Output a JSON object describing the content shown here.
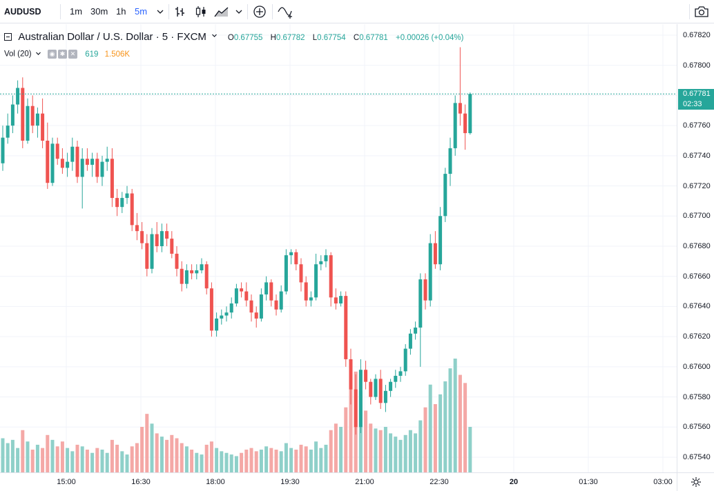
{
  "toolbar": {
    "symbol": "AUDUSD",
    "intervals": [
      "1m",
      "30m",
      "1h",
      "5m"
    ],
    "active_interval": "5m",
    "icons": [
      "bar-chart-icon",
      "candlestick-icon",
      "area-chart-icon",
      "chevron-down-icon",
      "compare-plus-icon",
      "indicators-icon",
      "camera-icon"
    ]
  },
  "legend": {
    "title": "Australian Dollar / U.S. Dollar · 5 · FXCM",
    "open_label": "O",
    "open": "0.67755",
    "high_label": "H",
    "high": "0.67782",
    "low_label": "L",
    "low": "0.67754",
    "close_label": "C",
    "close": "0.67781",
    "change": "+0.00026 (+0.04%)"
  },
  "volume_legend": {
    "label": "Vol (20)",
    "value_1": "619",
    "value_2": "1.506K",
    "value_1_color": "#26a69a",
    "value_2_color": "#f7931a"
  },
  "price_axis": {
    "labels": [
      "0.67820",
      "0.67800",
      "0.67780",
      "0.67760",
      "0.67740",
      "0.67720",
      "0.67700",
      "0.67680",
      "0.67660",
      "0.67640",
      "0.67620",
      "0.67600",
      "0.67580",
      "0.67560",
      "0.67540"
    ],
    "last_price": "0.67781",
    "countdown": "02:33"
  },
  "time_axis": {
    "labels": [
      "15:00",
      "16:30",
      "18:00",
      "19:30",
      "21:00",
      "22:30",
      "20",
      "01:30",
      "03:00"
    ]
  },
  "colors": {
    "up": "#26a69a",
    "down": "#ef5350",
    "up_volume": "#8fd0c9",
    "down_volume": "#f4a8a6",
    "grid": "#f0f3fa",
    "last_line": "#26a69a"
  },
  "chart_data": {
    "type": "candlestick",
    "title": "Australian Dollar / U.S. Dollar · 5 · FXCM",
    "ylim": [
      0.6753,
      0.6783
    ],
    "x_ticks": [
      "15:00",
      "16:30",
      "18:00",
      "19:30",
      "21:00",
      "22:30",
      "20",
      "01:30",
      "03:00"
    ],
    "candles": [
      [
        0.67735,
        0.6776,
        0.6773,
        0.67752,
        "up",
        210
      ],
      [
        0.67752,
        0.67768,
        0.67748,
        0.6776,
        "up",
        180
      ],
      [
        0.6776,
        0.6778,
        0.67755,
        0.67774,
        "up",
        200
      ],
      [
        0.67774,
        0.6779,
        0.67768,
        0.67785,
        "up",
        150
      ],
      [
        0.67785,
        0.67792,
        0.67745,
        0.6775,
        "down",
        260
      ],
      [
        0.6775,
        0.67778,
        0.67748,
        0.67773,
        "up",
        190
      ],
      [
        0.67773,
        0.6778,
        0.67755,
        0.6776,
        "down",
        140
      ],
      [
        0.6776,
        0.67772,
        0.67752,
        0.67768,
        "up",
        170
      ],
      [
        0.67768,
        0.67778,
        0.67745,
        0.6775,
        "down",
        150
      ],
      [
        0.6775,
        0.67762,
        0.67718,
        0.67722,
        "down",
        230
      ],
      [
        0.67722,
        0.67752,
        0.6772,
        0.67748,
        "up",
        200
      ],
      [
        0.67748,
        0.67752,
        0.67734,
        0.67738,
        "down",
        160
      ],
      [
        0.67738,
        0.67745,
        0.67728,
        0.67732,
        "down",
        190
      ],
      [
        0.67732,
        0.67742,
        0.67726,
        0.67736,
        "up",
        150
      ],
      [
        0.67736,
        0.67752,
        0.6773,
        0.67746,
        "up",
        130
      ],
      [
        0.67746,
        0.6775,
        0.67722,
        0.67726,
        "down",
        170
      ],
      [
        0.67726,
        0.67745,
        0.67705,
        0.67738,
        "up",
        160
      ],
      [
        0.67738,
        0.67745,
        0.6773,
        0.67734,
        "down",
        140
      ],
      [
        0.67734,
        0.67742,
        0.67726,
        0.67738,
        "up",
        120
      ],
      [
        0.67738,
        0.67742,
        0.67722,
        0.67726,
        "down",
        150
      ],
      [
        0.67726,
        0.6774,
        0.6772,
        0.67736,
        "up",
        140
      ],
      [
        0.67736,
        0.67746,
        0.6773,
        0.67738,
        "up",
        120
      ],
      [
        0.67738,
        0.67745,
        0.67706,
        0.67712,
        "down",
        200
      ],
      [
        0.67712,
        0.67718,
        0.677,
        0.67706,
        "down",
        170
      ],
      [
        0.67706,
        0.67716,
        0.67702,
        0.67712,
        "up",
        130
      ],
      [
        0.67712,
        0.6772,
        0.67708,
        0.67715,
        "up",
        110
      ],
      [
        0.67715,
        0.67718,
        0.6769,
        0.67694,
        "down",
        160
      ],
      [
        0.67694,
        0.67702,
        0.67684,
        0.6769,
        "down",
        180
      ],
      [
        0.6769,
        0.67696,
        0.67678,
        0.67682,
        "down",
        280
      ],
      [
        0.67682,
        0.67688,
        0.6766,
        0.67665,
        "down",
        360
      ],
      [
        0.67665,
        0.67692,
        0.67662,
        0.67688,
        "up",
        300
      ],
      [
        0.67688,
        0.67696,
        0.67676,
        0.6768,
        "down",
        240
      ],
      [
        0.6768,
        0.67695,
        0.67676,
        0.6769,
        "up",
        220
      ],
      [
        0.6769,
        0.67695,
        0.6768,
        0.67685,
        "down",
        200
      ],
      [
        0.67685,
        0.6769,
        0.67672,
        0.67675,
        "down",
        230
      ],
      [
        0.67675,
        0.6768,
        0.6766,
        0.67665,
        "down",
        210
      ],
      [
        0.67665,
        0.6767,
        0.6765,
        0.67655,
        "down",
        180
      ],
      [
        0.67655,
        0.67668,
        0.67652,
        0.67664,
        "up",
        160
      ],
      [
        0.67664,
        0.67668,
        0.67658,
        0.67662,
        "down",
        140
      ],
      [
        0.67662,
        0.67668,
        0.67658,
        0.67664,
        "up",
        120
      ],
      [
        0.67664,
        0.67672,
        0.67662,
        0.67668,
        "up",
        110
      ],
      [
        0.67668,
        0.6767,
        0.67648,
        0.67652,
        "down",
        170
      ],
      [
        0.67652,
        0.67656,
        0.6762,
        0.67624,
        "down",
        190
      ],
      [
        0.67624,
        0.67636,
        0.6762,
        0.67632,
        "up",
        150
      ],
      [
        0.67632,
        0.67638,
        0.67628,
        0.67634,
        "up",
        130
      ],
      [
        0.67634,
        0.6764,
        0.6763,
        0.67636,
        "up",
        120
      ],
      [
        0.67636,
        0.67646,
        0.67632,
        0.67642,
        "up",
        110
      ],
      [
        0.67642,
        0.67655,
        0.6764,
        0.67652,
        "up",
        100
      ],
      [
        0.67652,
        0.67656,
        0.67646,
        0.6765,
        "down",
        120
      ],
      [
        0.6765,
        0.67656,
        0.6764,
        0.67644,
        "down",
        140
      ],
      [
        0.67644,
        0.67648,
        0.6763,
        0.67636,
        "down",
        150
      ],
      [
        0.67636,
        0.6764,
        0.67626,
        0.67632,
        "down",
        130
      ],
      [
        0.67632,
        0.67652,
        0.6763,
        0.67648,
        "up",
        140
      ],
      [
        0.67648,
        0.6766,
        0.67644,
        0.67656,
        "up",
        160
      ],
      [
        0.67656,
        0.67658,
        0.6764,
        0.67644,
        "down",
        150
      ],
      [
        0.67644,
        0.67648,
        0.67634,
        0.67638,
        "down",
        140
      ],
      [
        0.67638,
        0.67654,
        0.67636,
        0.6765,
        "up",
        130
      ],
      [
        0.6765,
        0.67678,
        0.67648,
        0.67674,
        "up",
        180
      ],
      [
        0.67674,
        0.67678,
        0.67668,
        0.67676,
        "up",
        150
      ],
      [
        0.67676,
        0.67678,
        0.67664,
        0.67668,
        "down",
        140
      ],
      [
        0.67668,
        0.67672,
        0.6765,
        0.67656,
        "down",
        170
      ],
      [
        0.67656,
        0.6766,
        0.6764,
        0.67644,
        "down",
        160
      ],
      [
        0.67644,
        0.6765,
        0.6764,
        0.67646,
        "up",
        140
      ],
      [
        0.67646,
        0.67675,
        0.67644,
        0.67668,
        "up",
        190
      ],
      [
        0.67668,
        0.67674,
        0.67664,
        0.6767,
        "up",
        150
      ],
      [
        0.6767,
        0.67678,
        0.67666,
        0.67674,
        "up",
        170
      ],
      [
        0.67674,
        0.67676,
        0.6764,
        0.67646,
        "down",
        260
      ],
      [
        0.67646,
        0.67652,
        0.67638,
        0.67642,
        "down",
        300
      ],
      [
        0.67642,
        0.6765,
        0.6764,
        0.67647,
        "up",
        280
      ],
      [
        0.67647,
        0.6765,
        0.676,
        0.67605,
        "down",
        400
      ],
      [
        0.67605,
        0.67612,
        0.67575,
        0.67585,
        "down",
        520
      ],
      [
        0.67585,
        0.67595,
        0.67555,
        0.6756,
        "down",
        620
      ],
      [
        0.6756,
        0.67605,
        0.67556,
        0.67598,
        "up",
        500
      ],
      [
        0.67598,
        0.67604,
        0.67585,
        0.6759,
        "down",
        380
      ],
      [
        0.6759,
        0.67592,
        0.67575,
        0.6758,
        "down",
        300
      ],
      [
        0.6758,
        0.67595,
        0.67578,
        0.67592,
        "up",
        270
      ],
      [
        0.67592,
        0.67598,
        0.67572,
        0.67576,
        "down",
        260
      ],
      [
        0.67576,
        0.67588,
        0.6757,
        0.67584,
        "up",
        280
      ],
      [
        0.67584,
        0.67592,
        0.6758,
        0.6759,
        "up",
        240
      ],
      [
        0.6759,
        0.67598,
        0.67586,
        0.67594,
        "up",
        220
      ],
      [
        0.67594,
        0.676,
        0.6759,
        0.67597,
        "up",
        200
      ],
      [
        0.67597,
        0.67615,
        0.67594,
        0.67612,
        "up",
        230
      ],
      [
        0.67612,
        0.67625,
        0.67608,
        0.67622,
        "up",
        260
      ],
      [
        0.67622,
        0.6763,
        0.67618,
        0.67626,
        "up",
        240
      ],
      [
        0.67626,
        0.67662,
        0.676,
        0.67658,
        "up",
        320
      ],
      [
        0.67658,
        0.67662,
        0.67638,
        0.67644,
        "down",
        400
      ],
      [
        0.67644,
        0.67688,
        0.6764,
        0.67682,
        "up",
        540
      ],
      [
        0.67682,
        0.6769,
        0.67665,
        0.67668,
        "down",
        420
      ],
      [
        0.67668,
        0.67706,
        0.67664,
        0.677,
        "up",
        480
      ],
      [
        0.677,
        0.67732,
        0.67696,
        0.67728,
        "up",
        560
      ],
      [
        0.67728,
        0.67752,
        0.6772,
        0.67745,
        "up",
        640
      ],
      [
        0.67745,
        0.6778,
        0.6774,
        0.67775,
        "up",
        700
      ],
      [
        0.67775,
        0.67812,
        0.6776,
        0.67768,
        "down",
        600
      ],
      [
        0.67768,
        0.67774,
        0.67744,
        0.67755,
        "down",
        550
      ],
      [
        0.67755,
        0.67782,
        0.67754,
        0.67781,
        "up",
        280
      ]
    ]
  }
}
